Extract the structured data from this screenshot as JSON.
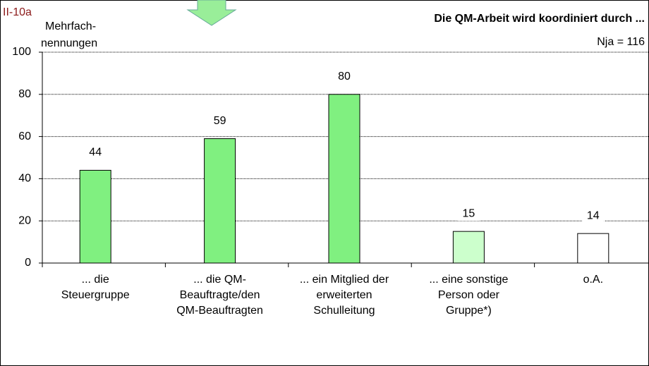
{
  "chart_data": {
    "type": "bar",
    "id_label": "II-10a",
    "title": "Die QM-Arbeit wird koordiniert durch ...",
    "subtitle": "Nja = 116",
    "y_label": [
      "Mehrfach-",
      "nennungen"
    ],
    "categories": [
      [
        "... die",
        "Steuergruppe"
      ],
      [
        "... die QM-",
        "Beauftragte/den",
        "QM-Beauftragten"
      ],
      [
        "... ein Mitglied der",
        "erweiterten",
        "Schulleitung"
      ],
      [
        "... eine sonstige",
        "Person oder",
        "Gruppe*)"
      ],
      [
        "o.A."
      ]
    ],
    "values": [
      44,
      59,
      80,
      15,
      14
    ],
    "colors": [
      "#80f080",
      "#80f080",
      "#80f080",
      "#ccffcc",
      "#ffffff"
    ],
    "ylim": [
      0,
      100
    ],
    "yticks": [
      0,
      20,
      40,
      60,
      80,
      100
    ],
    "grid": true
  }
}
